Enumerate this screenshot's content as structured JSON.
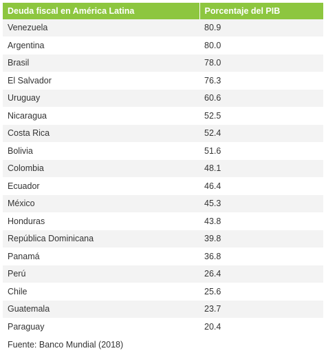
{
  "chart_data": {
    "type": "table",
    "columns": [
      "Deuda fiscal en América Latina",
      "Porcentaje del PIB"
    ],
    "categories": [
      "Venezuela",
      "Argentina",
      "Brasil",
      "El Salvador",
      "Uruguay",
      "Nicaragua",
      "Costa Rica",
      "Bolivia",
      "Colombia",
      "Ecuador",
      "México",
      "Honduras",
      "República Dominicana",
      "Panamá",
      "Perú",
      "Chile",
      "Guatemala",
      "Paraguay"
    ],
    "values": [
      "80.9",
      "80.0",
      "78.0",
      "76.3",
      "60.6",
      "52.5",
      "52.4",
      "51.6",
      "48.1",
      "46.4",
      "45.3",
      "43.8",
      "39.8",
      "36.8",
      "26.4",
      "25.6",
      "23.7",
      "20.4"
    ],
    "source": "Fuente: Banco Mundial (2018)"
  },
  "colors": {
    "header_bg": "#8dc63f",
    "stripe": "#f3f3f3"
  }
}
